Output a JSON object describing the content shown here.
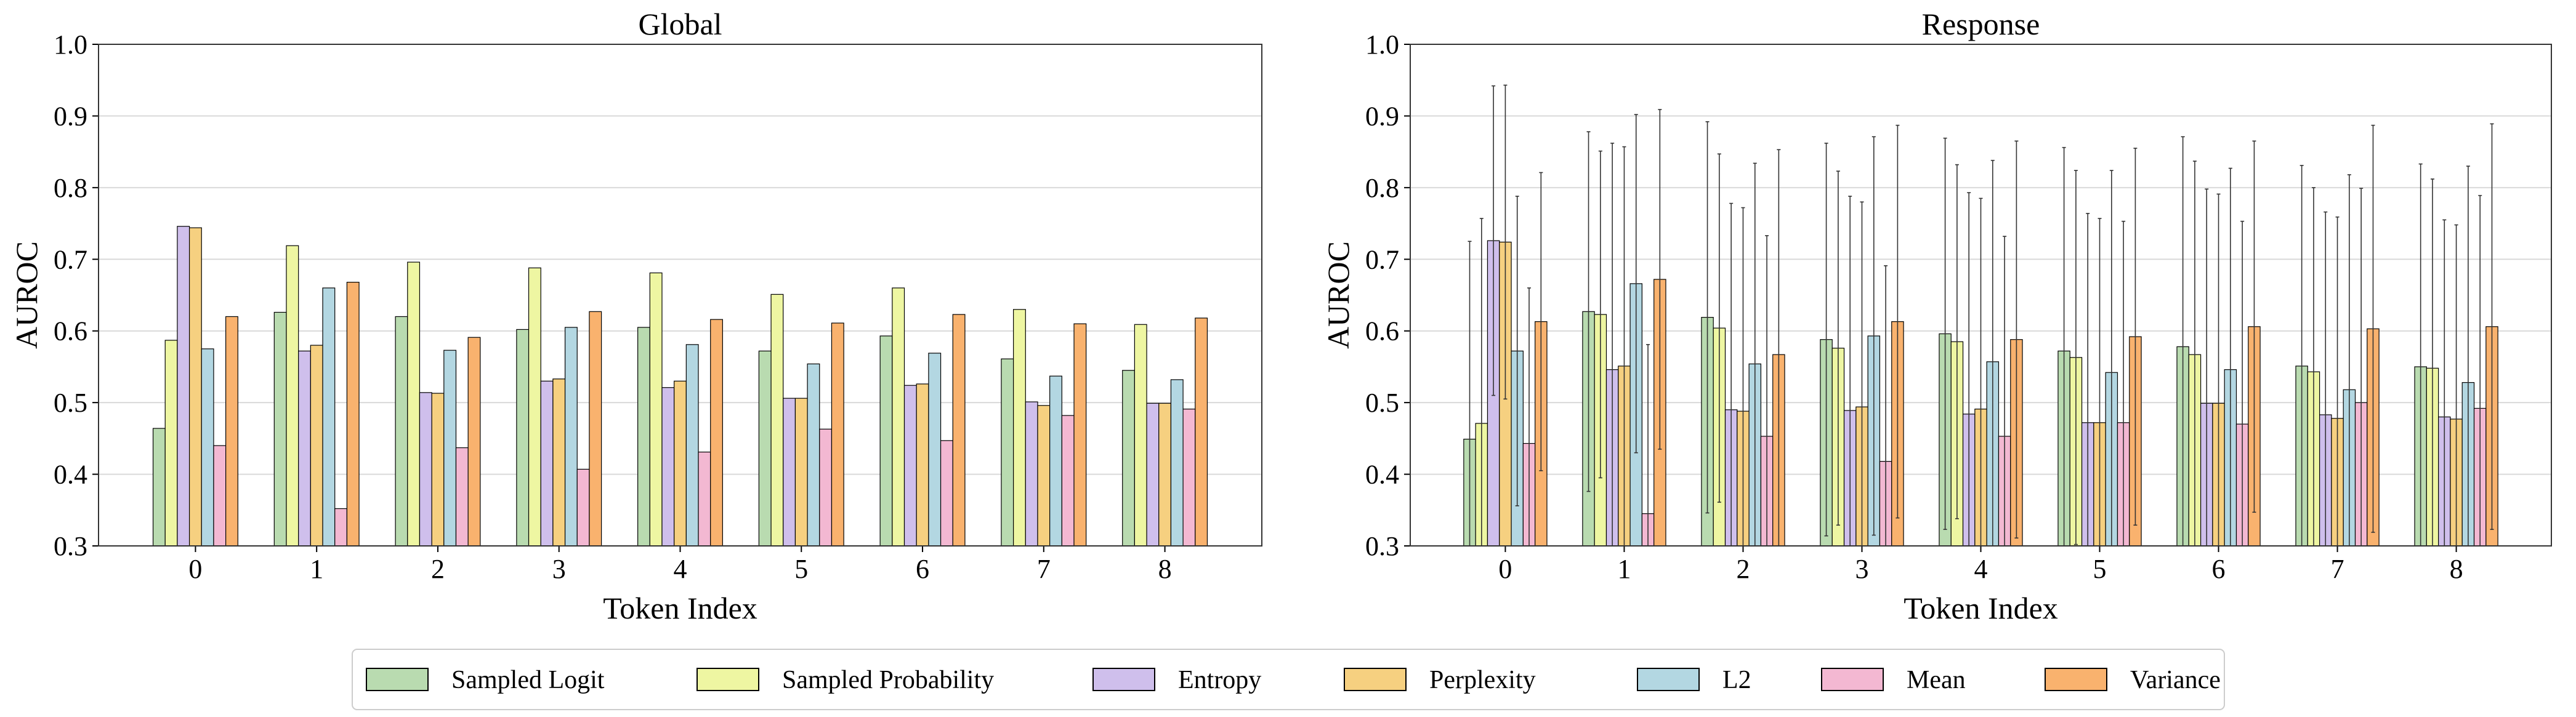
{
  "legend_labels": [
    "Sampled Logit",
    "Sampled Probability",
    "Entropy",
    "Perplexity",
    "L2",
    "Mean",
    "Variance"
  ],
  "colors": [
    "#b9dbb0",
    "#eef6a2",
    "#cfbfec",
    "#f6d080",
    "#b3d7e2",
    "#f3b8d2",
    "#f9b26e"
  ],
  "legend_placement": "bottom-center",
  "chart_data": [
    {
      "type": "bar",
      "title": "Global",
      "xlabel": "Token Index",
      "ylabel": "AUROC",
      "ylim": [
        0.3,
        1.0
      ],
      "yticks": [
        "0.3",
        "0.4",
        "0.5",
        "0.6",
        "0.7",
        "0.8",
        "0.9",
        "1.0"
      ],
      "grid": true,
      "categories": [
        "0",
        "1",
        "2",
        "3",
        "4",
        "5",
        "6",
        "7",
        "8"
      ],
      "series": [
        {
          "name": "Sampled Logit",
          "values": [
            0.464,
            0.626,
            0.62,
            0.602,
            0.605,
            0.572,
            0.593,
            0.561,
            0.545
          ]
        },
        {
          "name": "Sampled Probability",
          "values": [
            0.587,
            0.719,
            0.696,
            0.688,
            0.681,
            0.651,
            0.66,
            0.63,
            0.609
          ]
        },
        {
          "name": "Entropy",
          "values": [
            0.746,
            0.572,
            0.514,
            0.53,
            0.521,
            0.506,
            0.524,
            0.501,
            0.499
          ]
        },
        {
          "name": "Perplexity",
          "values": [
            0.744,
            0.58,
            0.513,
            0.533,
            0.53,
            0.506,
            0.526,
            0.496,
            0.499
          ]
        },
        {
          "name": "L2",
          "values": [
            0.575,
            0.66,
            0.573,
            0.605,
            0.581,
            0.554,
            0.569,
            0.537,
            0.532
          ]
        },
        {
          "name": "Mean",
          "values": [
            0.44,
            0.352,
            0.437,
            0.407,
            0.431,
            0.463,
            0.447,
            0.482,
            0.491
          ]
        },
        {
          "name": "Variance",
          "values": [
            0.62,
            0.668,
            0.591,
            0.627,
            0.616,
            0.611,
            0.623,
            0.61,
            0.618
          ]
        }
      ]
    },
    {
      "type": "bar",
      "title": "Response",
      "xlabel": "Token Index",
      "ylabel": "AUROC",
      "ylim": [
        0.3,
        1.0
      ],
      "yticks": [
        "0.3",
        "0.4",
        "0.5",
        "0.6",
        "0.7",
        "0.8",
        "0.9",
        "1.0"
      ],
      "grid": true,
      "error_bars": true,
      "categories": [
        "0",
        "1",
        "2",
        "3",
        "4",
        "5",
        "6",
        "7",
        "8"
      ],
      "series": [
        {
          "name": "Sampled Logit",
          "values": [
            0.449,
            0.627,
            0.619,
            0.588,
            0.596,
            0.572,
            0.578,
            0.551,
            0.55
          ],
          "errors": [
            0.276,
            0.251,
            0.273,
            0.274,
            0.273,
            0.284,
            0.293,
            0.28,
            0.283
          ]
        },
        {
          "name": "Sampled Probability",
          "values": [
            0.471,
            0.623,
            0.604,
            0.576,
            0.585,
            0.563,
            0.567,
            0.543,
            0.548
          ],
          "errors": [
            0.286,
            0.228,
            0.243,
            0.247,
            0.247,
            0.261,
            0.27,
            0.257,
            0.264
          ]
        },
        {
          "name": "Entropy",
          "values": [
            0.726,
            0.546,
            0.49,
            0.489,
            0.484,
            0.472,
            0.499,
            0.483,
            0.48
          ],
          "errors": [
            0.216,
            0.316,
            0.288,
            0.299,
            0.309,
            0.292,
            0.299,
            0.283,
            0.275
          ]
        },
        {
          "name": "Perplexity",
          "values": [
            0.724,
            0.551,
            0.488,
            0.494,
            0.491,
            0.472,
            0.499,
            0.478,
            0.477
          ],
          "errors": [
            0.219,
            0.306,
            0.284,
            0.286,
            0.294,
            0.285,
            0.292,
            0.281,
            0.271
          ]
        },
        {
          "name": "L2",
          "values": [
            0.572,
            0.666,
            0.554,
            0.593,
            0.557,
            0.542,
            0.546,
            0.518,
            0.528
          ],
          "errors": [
            0.216,
            0.236,
            0.28,
            0.278,
            0.281,
            0.282,
            0.281,
            0.3,
            0.302
          ]
        },
        {
          "name": "Mean",
          "values": [
            0.443,
            0.345,
            0.453,
            0.418,
            0.453,
            0.472,
            0.47,
            0.5,
            0.492
          ],
          "errors": [
            0.217,
            0.236,
            0.28,
            0.273,
            0.279,
            0.281,
            0.283,
            0.299,
            0.297
          ]
        },
        {
          "name": "Variance",
          "values": [
            0.613,
            0.672,
            0.567,
            0.613,
            0.588,
            0.592,
            0.606,
            0.603,
            0.606
          ],
          "errors": [
            0.208,
            0.237,
            0.286,
            0.274,
            0.277,
            0.263,
            0.259,
            0.284,
            0.283
          ]
        }
      ]
    }
  ]
}
